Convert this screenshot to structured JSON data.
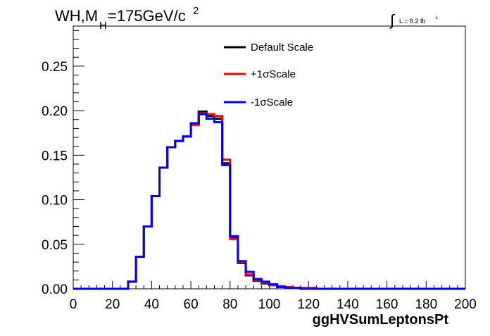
{
  "chart_data": {
    "type": "line",
    "title_main": "WH,M",
    "title_sub": "H",
    "title_rest": "=175GeV/c",
    "title_sup": "2",
    "lumi_integral": "∫",
    "lumi_text": "L = 8.2 fb",
    "lumi_sup": "-1",
    "xlabel": "ggHVSumLeptonsPt",
    "ylabel": "",
    "xlim": [
      0,
      200
    ],
    "ylim": [
      0,
      0.295
    ],
    "xticks": [
      "0",
      "20",
      "40",
      "60",
      "80",
      "100",
      "120",
      "140",
      "160",
      "180",
      "200"
    ],
    "yticks": [
      "0.00",
      "0.05",
      "0.10",
      "0.15",
      "0.20",
      "0.25"
    ],
    "legend_position": "top-center",
    "bin_edges": [
      0,
      4,
      8,
      12,
      16,
      20,
      24,
      28,
      32,
      36,
      40,
      44,
      48,
      52,
      56,
      60,
      64,
      68,
      72,
      76,
      80,
      84,
      88,
      92,
      96,
      100,
      104,
      108,
      112,
      116,
      120,
      124,
      128,
      132,
      136,
      140,
      144,
      148,
      152,
      156,
      160,
      164,
      168,
      172,
      176,
      180,
      184,
      188,
      192,
      196,
      200
    ],
    "series": [
      {
        "name": "Default Scale",
        "color": "#000000",
        "values": [
          0,
          0,
          0,
          0,
          0,
          0,
          0,
          0.008,
          0.036,
          0.07,
          0.104,
          0.136,
          0.159,
          0.166,
          0.171,
          0.185,
          0.199,
          0.194,
          0.191,
          0.141,
          0.057,
          0.029,
          0.015,
          0.009,
          0.006,
          0.004,
          0.002,
          0.001,
          0.001,
          0,
          0,
          0,
          0,
          0,
          0,
          0,
          0,
          0,
          0,
          0,
          0,
          0,
          0,
          0,
          0,
          0,
          0,
          0,
          0,
          0
        ]
      },
      {
        "name": "+1σScale",
        "color": "#ff0000",
        "values": [
          0,
          0,
          0,
          0,
          0,
          0,
          0,
          0.008,
          0.036,
          0.07,
          0.104,
          0.136,
          0.159,
          0.166,
          0.171,
          0.184,
          0.197,
          0.196,
          0.194,
          0.145,
          0.056,
          0.03,
          0.016,
          0.01,
          0.007,
          0.004,
          0.003,
          0.002,
          0.001,
          0.001,
          0.001,
          0,
          0,
          0,
          0,
          0,
          0,
          0,
          0,
          0,
          0,
          0,
          0,
          0,
          0,
          0,
          0,
          0,
          0,
          0
        ]
      },
      {
        "name": "-1σScale",
        "color": "#0000ff",
        "values": [
          0,
          0,
          0,
          0,
          0,
          0,
          0,
          0.008,
          0.036,
          0.07,
          0.104,
          0.136,
          0.159,
          0.166,
          0.171,
          0.186,
          0.196,
          0.191,
          0.187,
          0.139,
          0.059,
          0.031,
          0.019,
          0.011,
          0.008,
          0.005,
          0.002,
          0.001,
          0.001,
          0,
          0,
          0,
          0,
          0,
          0,
          0,
          0,
          0,
          0,
          0,
          0,
          0,
          0,
          0,
          0,
          0,
          0,
          0,
          0,
          0
        ]
      }
    ]
  }
}
